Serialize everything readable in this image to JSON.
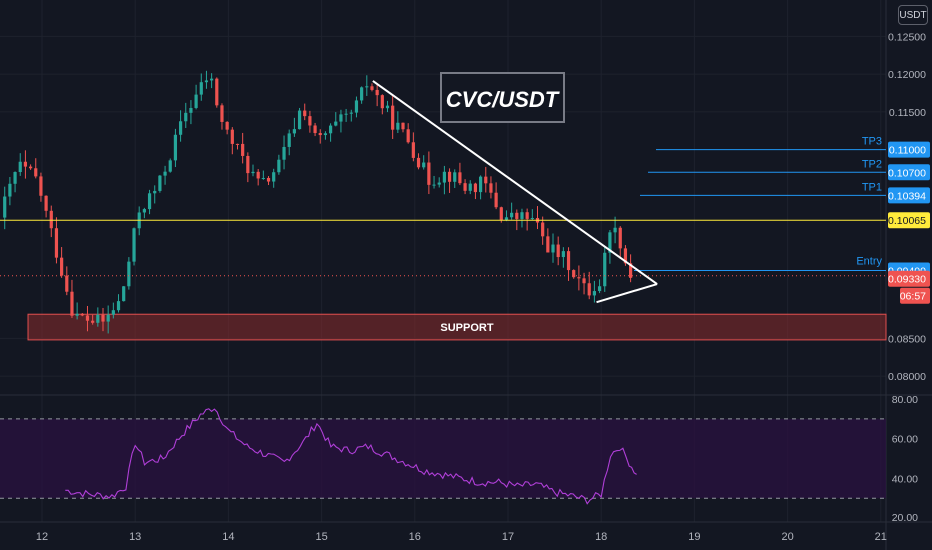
{
  "unit_label": "USDT",
  "title": "CVC/USDT",
  "colors": {
    "background": "#131722",
    "up": "#26a69a",
    "down": "#ef5350",
    "support_fill": "#8b2b2b",
    "support_border": "#e25050",
    "yellow_line": "#ffeb3b",
    "target_line": "#2196f3",
    "rsi_line": "#b03fd8",
    "rsi_band": "#2a1240",
    "axis_text": "#b2b5be"
  },
  "price_axis": {
    "ticks": [
      "0.12500",
      "0.12000",
      "0.11500",
      "0.08500",
      "0.08000"
    ]
  },
  "rsi_axis": {
    "ticks": [
      "80.00",
      "60.00",
      "40.00",
      "20.00"
    ]
  },
  "time_axis": {
    "labels": [
      "12",
      "13",
      "14",
      "15",
      "16",
      "17",
      "18",
      "19",
      "20",
      "21"
    ]
  },
  "levels": {
    "tp3": {
      "label": "TP3",
      "price": "0.11000"
    },
    "tp2": {
      "label": "TP2",
      "price": "0.10700"
    },
    "tp1": {
      "label": "TP1",
      "price": "0.10394"
    },
    "resistance": {
      "price": "0.10065"
    },
    "entry": {
      "label": "Entry",
      "price": "0.09400"
    },
    "last": {
      "price": "0.09330",
      "countdown": "06:57"
    }
  },
  "support_label": "SUPPORT",
  "chart_data": {
    "type": "candlestick",
    "title": "CVC/USDT",
    "xlabel": "",
    "ylabel": "",
    "x_labels": [
      "12",
      "13",
      "14",
      "15",
      "16",
      "17",
      "18",
      "19",
      "20",
      "21"
    ],
    "ylim": [
      0.0775,
      0.1285
    ],
    "price_path": [
      {
        "day": 11.6,
        "price": 0.101
      },
      {
        "day": 11.8,
        "price": 0.108
      },
      {
        "day": 12.0,
        "price": 0.106
      },
      {
        "day": 12.2,
        "price": 0.097
      },
      {
        "day": 12.4,
        "price": 0.088
      },
      {
        "day": 12.7,
        "price": 0.087
      },
      {
        "day": 12.9,
        "price": 0.09
      },
      {
        "day": 13.1,
        "price": 0.102
      },
      {
        "day": 13.3,
        "price": 0.105
      },
      {
        "day": 13.6,
        "price": 0.115
      },
      {
        "day": 13.85,
        "price": 0.12
      },
      {
        "day": 14.0,
        "price": 0.113
      },
      {
        "day": 14.2,
        "price": 0.109
      },
      {
        "day": 14.4,
        "price": 0.105
      },
      {
        "day": 14.6,
        "price": 0.108
      },
      {
        "day": 14.85,
        "price": 0.116
      },
      {
        "day": 15.0,
        "price": 0.111
      },
      {
        "day": 15.2,
        "price": 0.113
      },
      {
        "day": 15.4,
        "price": 0.115
      },
      {
        "day": 15.55,
        "price": 0.119
      },
      {
        "day": 15.8,
        "price": 0.114
      },
      {
        "day": 16.0,
        "price": 0.111
      },
      {
        "day": 16.2,
        "price": 0.106
      },
      {
        "day": 16.4,
        "price": 0.107
      },
      {
        "day": 16.6,
        "price": 0.105
      },
      {
        "day": 16.8,
        "price": 0.1055
      },
      {
        "day": 17.0,
        "price": 0.101
      },
      {
        "day": 17.3,
        "price": 0.101
      },
      {
        "day": 17.5,
        "price": 0.097
      },
      {
        "day": 17.7,
        "price": 0.095
      },
      {
        "day": 17.9,
        "price": 0.091
      },
      {
        "day": 18.05,
        "price": 0.0925
      },
      {
        "day": 18.15,
        "price": 0.1
      },
      {
        "day": 18.25,
        "price": 0.0985
      },
      {
        "day": 18.35,
        "price": 0.0933
      }
    ],
    "support_zone": {
      "from_day": 11.85,
      "to_day": 21.0,
      "low": 0.0848,
      "high": 0.0882
    },
    "triangle": {
      "upper": [
        {
          "day": 15.55,
          "price": 0.1191
        },
        {
          "day": 18.6,
          "price": 0.0922
        }
      ],
      "lower": [
        {
          "day": 17.95,
          "price": 0.0898
        },
        {
          "day": 18.6,
          "price": 0.0922
        }
      ]
    },
    "rsi": {
      "ylim": [
        18,
        82
      ],
      "upper_band": 70,
      "lower_band": 30,
      "path": [
        {
          "day": 12.25,
          "value": 34
        },
        {
          "day": 12.5,
          "value": 32
        },
        {
          "day": 12.75,
          "value": 31
        },
        {
          "day": 12.9,
          "value": 36
        },
        {
          "day": 13.0,
          "value": 58
        },
        {
          "day": 13.1,
          "value": 48
        },
        {
          "day": 13.3,
          "value": 50
        },
        {
          "day": 13.5,
          "value": 62
        },
        {
          "day": 13.7,
          "value": 72
        },
        {
          "day": 13.85,
          "value": 76
        },
        {
          "day": 14.0,
          "value": 64
        },
        {
          "day": 14.2,
          "value": 56
        },
        {
          "day": 14.4,
          "value": 52
        },
        {
          "day": 14.6,
          "value": 48
        },
        {
          "day": 14.8,
          "value": 58
        },
        {
          "day": 14.95,
          "value": 68
        },
        {
          "day": 15.1,
          "value": 56
        },
        {
          "day": 15.3,
          "value": 54
        },
        {
          "day": 15.5,
          "value": 56
        },
        {
          "day": 15.7,
          "value": 52
        },
        {
          "day": 15.9,
          "value": 48
        },
        {
          "day": 16.1,
          "value": 44
        },
        {
          "day": 16.3,
          "value": 42
        },
        {
          "day": 16.5,
          "value": 40
        },
        {
          "day": 16.7,
          "value": 38
        },
        {
          "day": 16.9,
          "value": 38
        },
        {
          "day": 17.1,
          "value": 36
        },
        {
          "day": 17.3,
          "value": 37
        },
        {
          "day": 17.5,
          "value": 33
        },
        {
          "day": 17.7,
          "value": 31
        },
        {
          "day": 17.85,
          "value": 29
        },
        {
          "day": 18.0,
          "value": 32
        },
        {
          "day": 18.1,
          "value": 52
        },
        {
          "day": 18.2,
          "value": 56
        },
        {
          "day": 18.3,
          "value": 48
        },
        {
          "day": 18.38,
          "value": 42
        }
      ]
    }
  }
}
